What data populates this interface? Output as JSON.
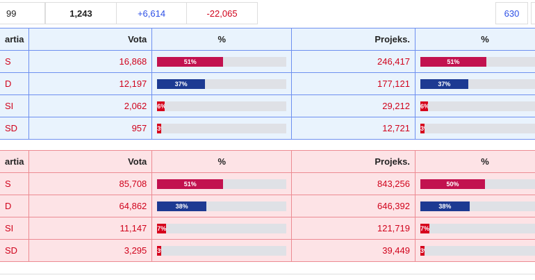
{
  "header": {
    "cells": [
      "99",
      "1,243",
      "+6,614",
      "-22,065"
    ],
    "right": "630"
  },
  "tables": [
    {
      "theme": "blue",
      "columns": [
        "artia",
        "Vota",
        "%",
        "Projeks.",
        "%"
      ],
      "rows": [
        {
          "party": "S",
          "color": "#c2124f",
          "votes": "16,868",
          "pct": 51,
          "pct_label": "51%",
          "proj": "246,417",
          "proj_pct": 51,
          "proj_pct_label": "51%"
        },
        {
          "party": "D",
          "color": "#1d3a92",
          "votes": "12,197",
          "pct": 37,
          "pct_label": "37%",
          "proj": "177,121",
          "proj_pct": 37,
          "proj_pct_label": "37%"
        },
        {
          "party": "SI",
          "color": "#d6001c",
          "votes": "2,062",
          "pct": 6,
          "pct_label": "6%",
          "proj": "29,212",
          "proj_pct": 6,
          "proj_pct_label": "6%"
        },
        {
          "party": "SD",
          "color": "#d6001c",
          "votes": "957",
          "pct": 3,
          "pct_label": "3%",
          "proj": "12,721",
          "proj_pct": 3,
          "proj_pct_label": "3%"
        }
      ]
    },
    {
      "theme": "red",
      "columns": [
        "artia",
        "Vota",
        "%",
        "Projeks.",
        "%"
      ],
      "rows": [
        {
          "party": "S",
          "color": "#c2124f",
          "votes": "85,708",
          "pct": 51,
          "pct_label": "51%",
          "proj": "843,256",
          "proj_pct": 50,
          "proj_pct_label": "50%"
        },
        {
          "party": "D",
          "color": "#1d3a92",
          "votes": "64,862",
          "pct": 38,
          "pct_label": "38%",
          "proj": "646,392",
          "proj_pct": 38,
          "proj_pct_label": "38%"
        },
        {
          "party": "SI",
          "color": "#d6001c",
          "votes": "11,147",
          "pct": 7,
          "pct_label": "7%",
          "proj": "121,719",
          "proj_pct": 7,
          "proj_pct_label": "7%"
        },
        {
          "party": "SD",
          "color": "#d6001c",
          "votes": "3,295",
          "pct": 3,
          "pct_label": "3%",
          "proj": "39,449",
          "proj_pct": 3,
          "proj_pct_label": "3%"
        }
      ]
    }
  ]
}
